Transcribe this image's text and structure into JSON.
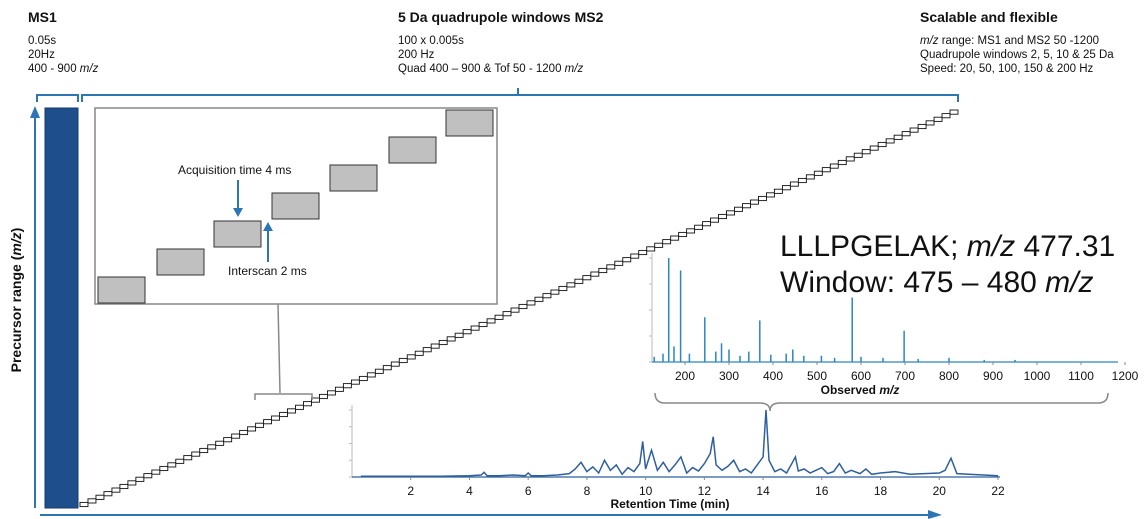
{
  "headers": [
    {
      "title": "MS1",
      "lines": [
        [
          {
            "t": "0.05s"
          }
        ],
        [
          {
            "t": "20Hz"
          }
        ],
        [
          {
            "t": "400 - 900 "
          },
          {
            "t": "m/z",
            "i": true
          }
        ]
      ]
    },
    {
      "title": "5 Da quadrupole windows MS2",
      "lines": [
        [
          {
            "t": "100 x 0.005s"
          }
        ],
        [
          {
            "t": "200 Hz"
          }
        ],
        [
          {
            "t": "Quad 400 – 900 & Tof 50 - 1200 "
          },
          {
            "t": "m/z",
            "i": true
          }
        ]
      ]
    },
    {
      "title": "Scalable and flexible",
      "lines": [
        [
          {
            "t": "m/z",
            "i": true
          },
          {
            "t": " range: MS1 and MS2 50 -1200"
          }
        ],
        [
          {
            "t": "Quadrupole windows 2, 5, 10 & 25 Da"
          }
        ],
        [
          {
            "t": "Speed: 20, 50, 100, 150 & 200 Hz"
          }
        ]
      ]
    }
  ],
  "inset": {
    "acquisition": "Acquisition time 4 ms",
    "interscan": "Interscan 2 ms"
  },
  "y_axis_label": [
    {
      "t": "Precursor range ("
    },
    {
      "t": "m/z",
      "i": true
    },
    {
      "t": ")"
    }
  ],
  "peptide": {
    "line1": [
      {
        "t": "LLLPGELAK; "
      },
      {
        "t": "m/z",
        "i": true
      },
      {
        "t": " 477.31"
      }
    ],
    "line2": [
      {
        "t": "Window: 475 – 480 "
      },
      {
        "t": "m/z",
        "i": true
      }
    ]
  },
  "chart_data": [
    {
      "type": "stem",
      "xlabel": [
        {
          "t": "Observed "
        },
        {
          "t": "m/z",
          "i": true
        }
      ],
      "color": "#2e86c1",
      "x": [
        130,
        150,
        163,
        175,
        190,
        210,
        245,
        270,
        283,
        300,
        325,
        345,
        370,
        395,
        430,
        445,
        470,
        510,
        540,
        580,
        600,
        650,
        698,
        730,
        800,
        880,
        950
      ],
      "values": [
        5,
        8,
        100,
        15,
        88,
        8,
        43,
        10,
        18,
        12,
        6,
        10,
        40,
        7,
        8,
        12,
        6,
        6,
        4,
        62,
        5,
        4,
        30,
        3,
        4,
        2,
        2
      ],
      "xlim": [
        125,
        1200
      ],
      "ylim": [
        0,
        100
      ],
      "xticks": [
        200,
        300,
        400,
        500,
        600,
        700,
        800,
        900,
        1000,
        1100,
        1200
      ]
    },
    {
      "type": "line",
      "xlabel": [
        {
          "t": "Retention Time (min)"
        }
      ],
      "color": "#2f5f9e",
      "x": [
        0.3,
        1,
        2,
        3,
        4,
        4.4,
        4.5,
        4.6,
        5,
        5.5,
        5.9,
        6.0,
        6.1,
        6.5,
        7,
        7.4,
        7.6,
        7.8,
        8.0,
        8.2,
        8.4,
        8.6,
        8.8,
        9.0,
        9.2,
        9.4,
        9.6,
        9.8,
        9.9,
        10.0,
        10.2,
        10.4,
        10.6,
        10.8,
        11.0,
        11.2,
        11.4,
        11.6,
        11.8,
        12.0,
        12.2,
        12.3,
        12.4,
        12.6,
        12.8,
        13.0,
        13.2,
        13.4,
        13.6,
        13.8,
        14.0,
        14.1,
        14.2,
        14.4,
        14.6,
        14.8,
        15.0,
        15.1,
        15.2,
        15.4,
        15.6,
        15.8,
        16.0,
        16.2,
        16.4,
        16.6,
        16.8,
        17.0,
        17.3,
        17.5,
        17.7,
        18.0,
        18.5,
        19.0,
        19.5,
        20.0,
        20.2,
        20.4,
        20.6,
        21.0,
        21.5,
        22.0
      ],
      "values": [
        1,
        1,
        1,
        1,
        2,
        3,
        7,
        2,
        2,
        3,
        2,
        6,
        2,
        2,
        3,
        5,
        12,
        22,
        8,
        15,
        6,
        25,
        10,
        18,
        4,
        14,
        8,
        20,
        53,
        12,
        40,
        10,
        22,
        8,
        18,
        30,
        6,
        14,
        9,
        20,
        35,
        60,
        18,
        10,
        16,
        25,
        8,
        12,
        6,
        18,
        30,
        100,
        25,
        8,
        12,
        6,
        22,
        30,
        9,
        12,
        6,
        10,
        14,
        5,
        8,
        20,
        6,
        10,
        5,
        12,
        4,
        6,
        8,
        4,
        5,
        6,
        10,
        28,
        5,
        4,
        3,
        2
      ],
      "xlim": [
        0,
        22
      ],
      "ylim": [
        0,
        100
      ],
      "xticks": [
        2,
        4,
        6,
        8,
        10,
        12,
        14,
        16,
        18,
        20,
        22
      ]
    }
  ]
}
